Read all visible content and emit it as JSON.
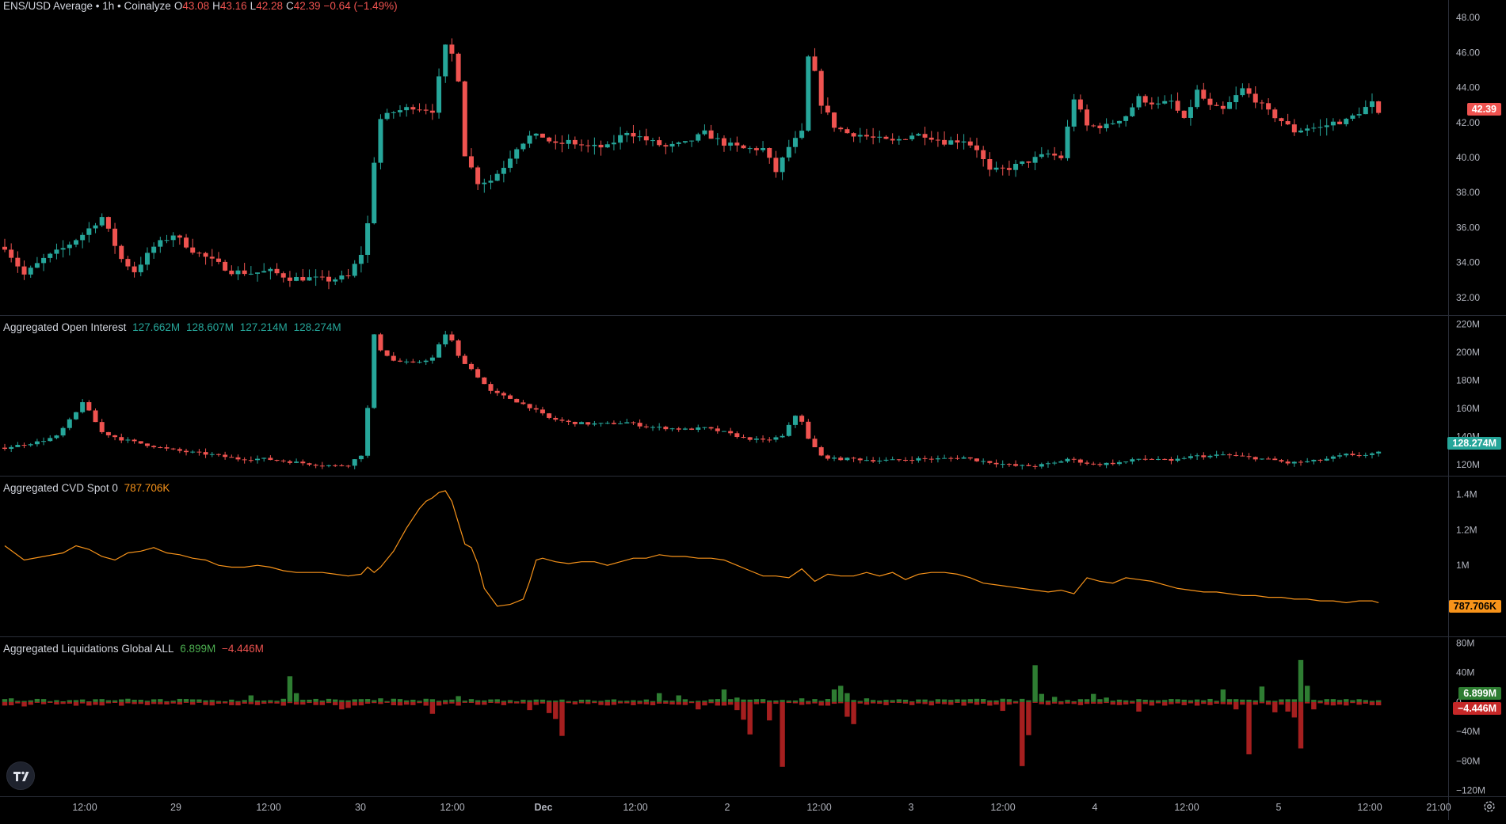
{
  "header": {
    "symbol": "ENS/USD Average • 1h • Coinalyze",
    "o_label": "O",
    "o_val": "43.08",
    "h_label": "H",
    "h_val": "43.16",
    "l_label": "L",
    "l_val": "42.28",
    "c_label": "C",
    "c_val": "42.39",
    "change": "−0.64 (−1.49%)"
  },
  "colors": {
    "up": "#26a69a",
    "down": "#ef5350",
    "cvd": "#f7931a",
    "liq_up": "#2e7d32",
    "liq_down": "#a51f1f",
    "text": "#d1d4dc",
    "axis_text": "#b2b5be"
  },
  "panes": {
    "price": {
      "current_badge": "42.39",
      "ticks": [
        "48.00",
        "46.00",
        "44.00",
        "42.00",
        "40.00",
        "38.00",
        "36.00",
        "34.00",
        "32.00"
      ]
    },
    "oi": {
      "title": "Aggregated Open Interest",
      "values": [
        "127.662M",
        "128.607M",
        "127.214M",
        "128.274M"
      ],
      "current_badge": "128.274M",
      "ticks": [
        "220M",
        "200M",
        "180M",
        "160M",
        "140M",
        "120M"
      ]
    },
    "cvd": {
      "title": "Aggregated CVD Spot 0",
      "value": "787.706K",
      "current_badge": "787.706K",
      "ticks": [
        "1.4M",
        "1.2M",
        "1M"
      ]
    },
    "liq": {
      "title": "Aggregated Liquidations Global ALL",
      "long_value": "6.899M",
      "short_value": "−4.446M",
      "badge_up": "6.899M",
      "badge_down": "−4.446M",
      "ticks": [
        "80M",
        "40M",
        "0",
        "−40M",
        "−80M",
        "−120M"
      ]
    }
  },
  "x_axis": {
    "labels": [
      "12:00",
      "29",
      "12:00",
      "30",
      "12:00",
      "Dec",
      "12:00",
      "2",
      "12:00",
      "3",
      "12:00",
      "4",
      "12:00",
      "5",
      "12:00",
      "21:00"
    ]
  },
  "chart_data": [
    {
      "type": "candlestick",
      "title": "ENS/USD Average • 1h • Coinalyze",
      "ylim": [
        31,
        49
      ],
      "x_labels": [
        "12:00",
        "29",
        "12:00",
        "30",
        "12:00",
        "Dec",
        "12:00",
        "2",
        "12:00",
        "3",
        "12:00",
        "4",
        "12:00",
        "5",
        "12:00",
        "21:00"
      ],
      "anchors": [
        [
          0,
          34.9
        ],
        [
          3,
          33.3
        ],
        [
          6,
          34.2
        ],
        [
          9,
          34.8
        ],
        [
          12,
          35.6
        ],
        [
          15,
          36.6
        ],
        [
          18,
          34.2
        ],
        [
          20,
          33.5
        ],
        [
          23,
          34.9
        ],
        [
          26,
          35.6
        ],
        [
          29,
          34.7
        ],
        [
          32,
          34.1
        ],
        [
          35,
          33.5
        ],
        [
          38,
          33.4
        ],
        [
          41,
          33.5
        ],
        [
          44,
          33.1
        ],
        [
          47,
          33.1
        ],
        [
          50,
          33.0
        ],
        [
          53,
          33.2
        ],
        [
          55,
          34.5
        ],
        [
          56,
          36.2
        ],
        [
          57,
          39.8
        ],
        [
          58,
          42.2
        ],
        [
          60,
          42.6
        ],
        [
          63,
          42.9
        ],
        [
          66,
          42.7
        ],
        [
          67,
          44.5
        ],
        [
          68,
          46.3
        ],
        [
          69,
          45.9
        ],
        [
          70,
          44.5
        ],
        [
          71,
          40.2
        ],
        [
          73,
          38.6
        ],
        [
          75,
          38.7
        ],
        [
          77,
          39.5
        ],
        [
          79,
          40.6
        ],
        [
          81,
          41.2
        ],
        [
          83,
          41.2
        ],
        [
          85,
          40.7
        ],
        [
          87,
          40.9
        ],
        [
          90,
          40.6
        ],
        [
          93,
          40.6
        ],
        [
          96,
          41.5
        ],
        [
          99,
          41.0
        ],
        [
          102,
          40.6
        ],
        [
          105,
          40.8
        ],
        [
          108,
          41.4
        ],
        [
          111,
          40.8
        ],
        [
          114,
          40.5
        ],
        [
          117,
          40.5
        ],
        [
          119,
          39.2
        ],
        [
          121,
          40.6
        ],
        [
          123,
          41.4
        ],
        [
          124,
          45.7
        ],
        [
          125,
          44.8
        ],
        [
          126,
          43.1
        ],
        [
          128,
          41.8
        ],
        [
          130,
          41.4
        ],
        [
          132,
          41.3
        ],
        [
          134,
          41.1
        ],
        [
          137,
          40.9
        ],
        [
          140,
          41.3
        ],
        [
          142,
          41.3
        ],
        [
          145,
          40.9
        ],
        [
          148,
          41.0
        ],
        [
          150,
          40.5
        ],
        [
          152,
          39.2
        ],
        [
          155,
          39.4
        ],
        [
          158,
          39.8
        ],
        [
          161,
          40.2
        ],
        [
          163,
          40.0
        ],
        [
          165,
          43.4
        ],
        [
          167,
          41.8
        ],
        [
          170,
          41.8
        ],
        [
          173,
          42.4
        ],
        [
          175,
          43.4
        ],
        [
          178,
          43.0
        ],
        [
          180,
          43.2
        ],
        [
          182,
          42.1
        ],
        [
          184,
          43.8
        ],
        [
          186,
          42.9
        ],
        [
          188,
          42.7
        ],
        [
          191,
          43.9
        ],
        [
          193,
          43.3
        ],
        [
          195,
          42.6
        ],
        [
          197,
          42.1
        ],
        [
          199,
          41.5
        ],
        [
          201,
          41.7
        ],
        [
          203,
          41.7
        ],
        [
          205,
          42.0
        ],
        [
          207,
          42.1
        ],
        [
          209,
          42.6
        ],
        [
          211,
          43.1
        ],
        [
          212,
          42.4
        ]
      ]
    },
    {
      "type": "candlestick",
      "title": "Aggregated Open Interest",
      "ylim": [
        112,
        226
      ],
      "anchors": [
        [
          0,
          132
        ],
        [
          5,
          136
        ],
        [
          8,
          140
        ],
        [
          11,
          157
        ],
        [
          12,
          165
        ],
        [
          15,
          143
        ],
        [
          18,
          138
        ],
        [
          21,
          135
        ],
        [
          25,
          131
        ],
        [
          28,
          129
        ],
        [
          32,
          127
        ],
        [
          36,
          124
        ],
        [
          40,
          124
        ],
        [
          44,
          122
        ],
        [
          48,
          120
        ],
        [
          51,
          119
        ],
        [
          53,
          120
        ],
        [
          55,
          127
        ],
        [
          56,
          160
        ],
        [
          57,
          212
        ],
        [
          58,
          202
        ],
        [
          60,
          194
        ],
        [
          63,
          192
        ],
        [
          66,
          196
        ],
        [
          67,
          205
        ],
        [
          68,
          213
        ],
        [
          69,
          208
        ],
        [
          70,
          197
        ],
        [
          72,
          188
        ],
        [
          75,
          172
        ],
        [
          78,
          167
        ],
        [
          81,
          161
        ],
        [
          84,
          153
        ],
        [
          87,
          150
        ],
        [
          90,
          149
        ],
        [
          93,
          149
        ],
        [
          96,
          150
        ],
        [
          99,
          147
        ],
        [
          102,
          146
        ],
        [
          105,
          145
        ],
        [
          108,
          146
        ],
        [
          111,
          143
        ],
        [
          114,
          139
        ],
        [
          117,
          137
        ],
        [
          120,
          140
        ],
        [
          122,
          155
        ],
        [
          123,
          151
        ],
        [
          124,
          138
        ],
        [
          126,
          126
        ],
        [
          128,
          124
        ],
        [
          131,
          124
        ],
        [
          134,
          123
        ],
        [
          137,
          123
        ],
        [
          141,
          124
        ],
        [
          144,
          124
        ],
        [
          148,
          125
        ],
        [
          150,
          123
        ],
        [
          153,
          121
        ],
        [
          156,
          119
        ],
        [
          159,
          119
        ],
        [
          162,
          121
        ],
        [
          164,
          124
        ],
        [
          166,
          122
        ],
        [
          168,
          120
        ],
        [
          171,
          121
        ],
        [
          173,
          122
        ],
        [
          175,
          124
        ],
        [
          178,
          124
        ],
        [
          180,
          122
        ],
        [
          182,
          125
        ],
        [
          184,
          126
        ],
        [
          186,
          126
        ],
        [
          188,
          127
        ],
        [
          190,
          126
        ],
        [
          192,
          125
        ],
        [
          194,
          124
        ],
        [
          196,
          123
        ],
        [
          198,
          121
        ],
        [
          201,
          122
        ],
        [
          203,
          123
        ],
        [
          205,
          125
        ],
        [
          207,
          127
        ],
        [
          208,
          126
        ],
        [
          212,
          128.3
        ]
      ]
    },
    {
      "type": "line",
      "title": "Aggregated CVD Spot 0",
      "ylim": [
        0.6,
        1.5
      ],
      "x": [
        0,
        3,
        6,
        9,
        11,
        13,
        15,
        17,
        19,
        21,
        23,
        25,
        27,
        29,
        31,
        33,
        35,
        37,
        39,
        41,
        43,
        45,
        47,
        49,
        51,
        53,
        55,
        56,
        57,
        58,
        60,
        62,
        64,
        65,
        66,
        67,
        68,
        69,
        70,
        71,
        72,
        73,
        74,
        76,
        78,
        80,
        81,
        82,
        83,
        85,
        87,
        89,
        91,
        93,
        95,
        97,
        99,
        101,
        103,
        105,
        107,
        109,
        111,
        113,
        115,
        117,
        119,
        121,
        123,
        125,
        127,
        129,
        131,
        133,
        135,
        137,
        139,
        141,
        143,
        145,
        147,
        149,
        151,
        153,
        155,
        157,
        159,
        161,
        163,
        165,
        167,
        169,
        171,
        173,
        175,
        177,
        179,
        181,
        183,
        185,
        187,
        189,
        191,
        193,
        195,
        197,
        199,
        201,
        203,
        205,
        207,
        209,
        211,
        212
      ],
      "values": [
        1.11,
        1.03,
        1.05,
        1.07,
        1.11,
        1.09,
        1.05,
        1.03,
        1.07,
        1.08,
        1.1,
        1.07,
        1.06,
        1.04,
        1.03,
        1.0,
        0.99,
        0.99,
        1.0,
        0.99,
        0.97,
        0.96,
        0.96,
        0.96,
        0.95,
        0.94,
        0.95,
        0.99,
        0.96,
        0.99,
        1.08,
        1.21,
        1.32,
        1.36,
        1.38,
        1.41,
        1.42,
        1.36,
        1.24,
        1.12,
        1.1,
        1.01,
        0.87,
        0.77,
        0.78,
        0.81,
        0.91,
        1.03,
        1.04,
        1.02,
        1.01,
        1.02,
        1.02,
        1.0,
        1.02,
        1.04,
        1.04,
        1.06,
        1.05,
        1.05,
        1.04,
        1.04,
        1.03,
        1.0,
        0.97,
        0.94,
        0.94,
        0.93,
        0.98,
        0.91,
        0.95,
        0.94,
        0.94,
        0.96,
        0.94,
        0.96,
        0.92,
        0.95,
        0.96,
        0.96,
        0.95,
        0.93,
        0.9,
        0.89,
        0.88,
        0.87,
        0.86,
        0.85,
        0.86,
        0.84,
        0.93,
        0.91,
        0.9,
        0.93,
        0.92,
        0.91,
        0.89,
        0.87,
        0.86,
        0.85,
        0.85,
        0.84,
        0.83,
        0.83,
        0.82,
        0.82,
        0.81,
        0.81,
        0.8,
        0.8,
        0.79,
        0.8,
        0.8,
        0.79
      ]
    },
    {
      "type": "bar",
      "title": "Aggregated Liquidations Global ALL",
      "ylim": [
        -128,
        88
      ],
      "spikes_long": [
        [
          0,
          4
        ],
        [
          1,
          5
        ],
        [
          15,
          4
        ],
        [
          20,
          3
        ],
        [
          24,
          4
        ],
        [
          38,
          9
        ],
        [
          44,
          35
        ],
        [
          45,
          12
        ],
        [
          58,
          5
        ],
        [
          70,
          8
        ],
        [
          72,
          4
        ],
        [
          80,
          3
        ],
        [
          101,
          12
        ],
        [
          104,
          9
        ],
        [
          111,
          17
        ],
        [
          113,
          6
        ],
        [
          123,
          5
        ],
        [
          128,
          17
        ],
        [
          129,
          22
        ],
        [
          130,
          12
        ],
        [
          133,
          5
        ],
        [
          159,
          50
        ],
        [
          160,
          11
        ],
        [
          162,
          7
        ],
        [
          168,
          11
        ],
        [
          170,
          6
        ],
        [
          188,
          17
        ],
        [
          194,
          21
        ],
        [
          200,
          57
        ],
        [
          201,
          22
        ],
        [
          205,
          4
        ]
      ],
      "spikes_short": [
        [
          3,
          6
        ],
        [
          11,
          5
        ],
        [
          24,
          3
        ],
        [
          52,
          10
        ],
        [
          53,
          8
        ],
        [
          66,
          16
        ],
        [
          81,
          11
        ],
        [
          84,
          15
        ],
        [
          85,
          23
        ],
        [
          86,
          46
        ],
        [
          107,
          10
        ],
        [
          113,
          11
        ],
        [
          114,
          24
        ],
        [
          115,
          44
        ],
        [
          118,
          25
        ],
        [
          120,
          88
        ],
        [
          130,
          20
        ],
        [
          131,
          30
        ],
        [
          154,
          12
        ],
        [
          157,
          87
        ],
        [
          158,
          45
        ],
        [
          175,
          13
        ],
        [
          190,
          10
        ],
        [
          192,
          71
        ],
        [
          196,
          14
        ],
        [
          198,
          13
        ],
        [
          199,
          21
        ],
        [
          200,
          63
        ],
        [
          202,
          10
        ]
      ]
    }
  ]
}
